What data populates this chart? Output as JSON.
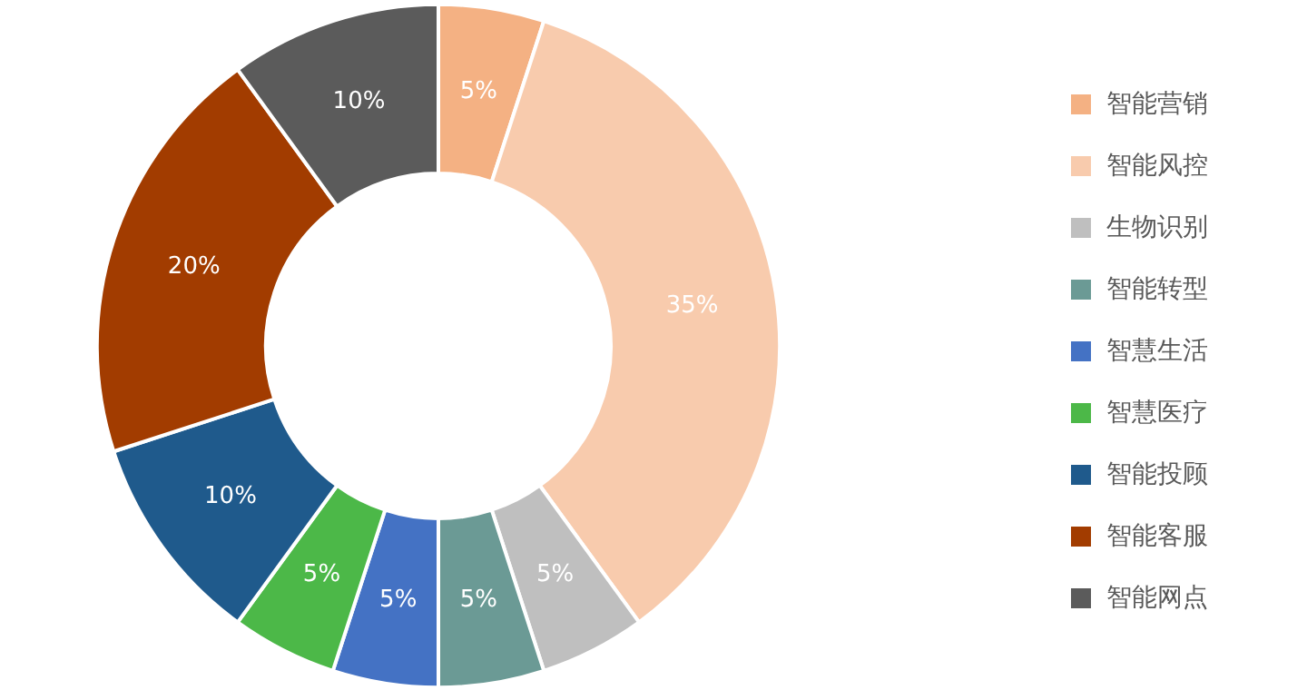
{
  "chart_data": {
    "type": "donut",
    "categories": [
      "智能营销",
      "智能风控",
      "生物识别",
      "智能转型",
      "智慧生活",
      "智慧医疗",
      "智能投顾",
      "智能客服",
      "智能网点"
    ],
    "values": [
      5,
      35,
      5,
      5,
      5,
      5,
      10,
      20,
      10
    ],
    "value_labels": [
      "5%",
      "35%",
      "5%",
      "5%",
      "5%",
      "5%",
      "10%",
      "20%",
      "10%"
    ],
    "colors": [
      "#f4b183",
      "#f8cbad",
      "#bfbfbf",
      "#6b9a95",
      "#4472c4",
      "#4cb848",
      "#1f5a8c",
      "#a23c00",
      "#5b5b5b"
    ],
    "legend": "right"
  }
}
